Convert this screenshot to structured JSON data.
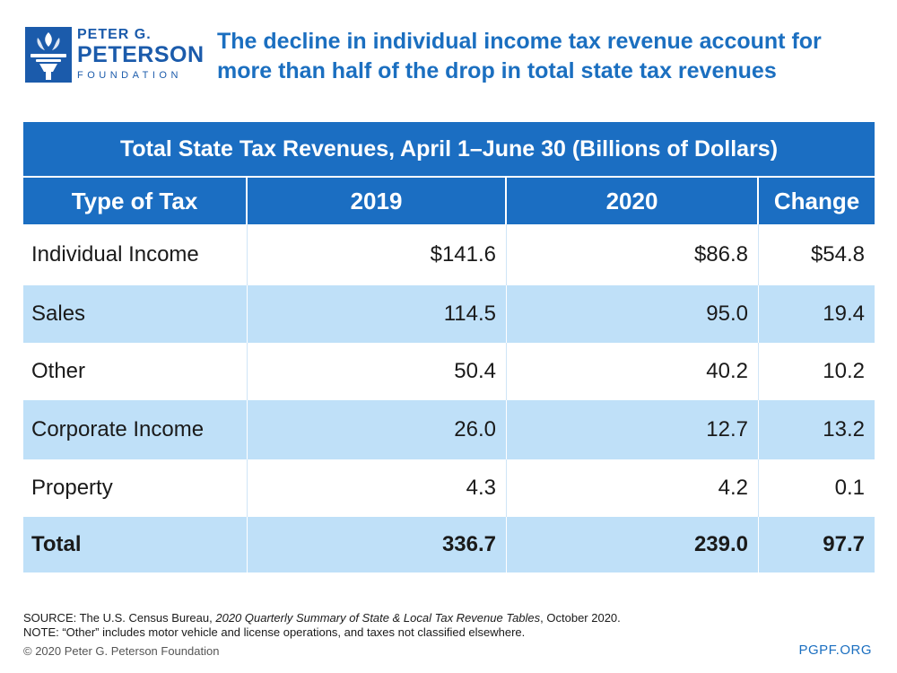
{
  "logo": {
    "line1": "PETER G.",
    "line2": "PETERSON",
    "line3": "FOUNDATION",
    "icon": "torch-icon"
  },
  "headline": "The decline in individual income tax revenue account for more than half of the drop in total state tax revenues",
  "table": {
    "title": "Total State Tax Revenues, April 1–June 30 (Billions of Dollars)",
    "headers": [
      "Type of Tax",
      "2019",
      "2020",
      "Change"
    ],
    "rows": [
      [
        "Individual Income",
        "$141.6",
        "$86.8",
        "$54.8"
      ],
      [
        "Sales",
        "114.5",
        "95.0",
        "19.4"
      ],
      [
        "Other",
        "50.4",
        "40.2",
        "10.2"
      ],
      [
        "Corporate Income",
        "26.0",
        "12.7",
        "13.2"
      ],
      [
        "Property",
        "4.3",
        "4.2",
        "0.1"
      ],
      [
        "Total",
        "336.7",
        "239.0",
        "97.7"
      ]
    ]
  },
  "notes": {
    "source_prefix": "SOURCE: The U.S. Census Bureau, ",
    "source_title": "2020 Quarterly Summary of State & Local Tax Revenue Tables",
    "source_suffix": ", October 2020.",
    "note": "NOTE: “Other” includes motor vehicle and license operations, and taxes not classified elsewhere."
  },
  "footer": {
    "copyright": "© 2020 Peter G. Peterson Foundation",
    "site": "PGPF.ORG"
  },
  "colors": {
    "brand_blue": "#1b5bab",
    "header_blue": "#1b6ec2",
    "stripe_blue": "#bfe0f8"
  }
}
